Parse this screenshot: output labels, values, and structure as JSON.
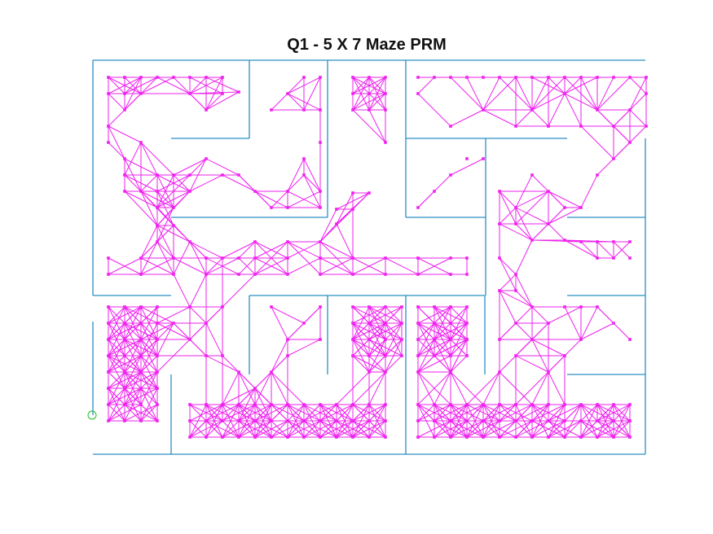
{
  "figure": {
    "title": "Q1 - 5 X 7 Maze PRM"
  },
  "colors": {
    "walls": "#2a8fc4",
    "roadmap": "#ee22ee",
    "start": "#1fbf1f",
    "background": "#ffffff"
  }
}
